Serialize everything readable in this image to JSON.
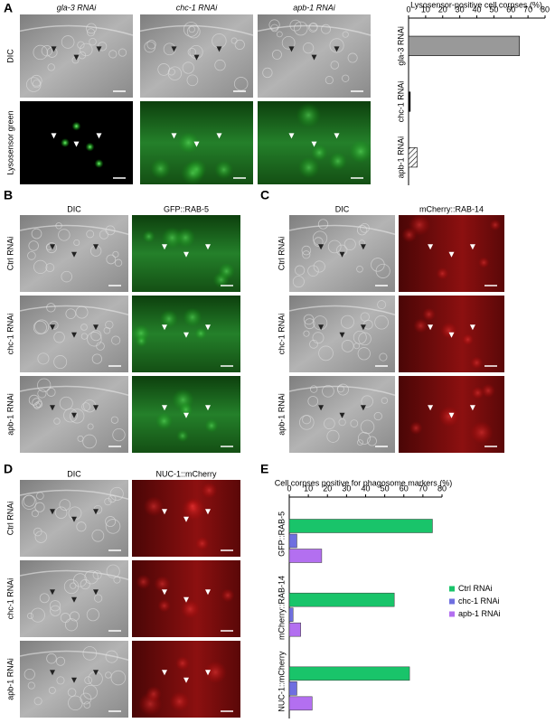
{
  "panel_letters": [
    "A",
    "B",
    "C",
    "D",
    "E"
  ],
  "panels": [
    {
      "columns": [
        "gla-3 RNAi",
        "chc-1 RNAi",
        "apb-1 RNAi"
      ],
      "rows": [
        "DIC",
        "Lysosensor green"
      ]
    },
    {
      "columns": [
        "DIC",
        "GFP::RAB-5"
      ],
      "rows": [
        "Ctrl RNAi",
        "chc-1 RNAi",
        "apb-1 RNAi"
      ]
    },
    {
      "columns": [
        "DIC",
        "mCherry::RAB-14"
      ],
      "rows": [
        "Ctrl RNAi",
        "chc-1 RNAi",
        "apb-1 RNAi"
      ]
    },
    {
      "columns": [
        "DIC",
        "NUC-1::mCherry"
      ],
      "rows": [
        "Ctrl RNAi",
        "chc-1 RNAi",
        "apb-1 RNAi"
      ]
    }
  ],
  "chart_data": [
    {
      "type": "bar",
      "orientation": "horizontal",
      "title": "Lysosensor-positive cell corpses (%)",
      "categories": [
        "gla-3 RNAi",
        "chc-1 RNAi",
        "apb-1 RNAi"
      ],
      "values": [
        65,
        1,
        5
      ],
      "colors": [
        "#999999",
        "#000000",
        "#ffffff"
      ],
      "hatch": [
        false,
        false,
        true
      ],
      "xlim": [
        0,
        80
      ],
      "xticks": [
        0,
        10,
        20,
        30,
        40,
        50,
        60,
        70,
        80
      ]
    },
    {
      "type": "bar",
      "orientation": "horizontal",
      "title": "Cell corpses positive for phagosome markers (%)",
      "categories": [
        "GFP::RAB-5",
        "mCherry::RAB-14",
        "NUC-1::mCherry"
      ],
      "series": [
        {
          "name": "Ctrl RNAi",
          "color": "#19c46a",
          "values": [
            75,
            55,
            63
          ]
        },
        {
          "name": "chc-1 RNAi",
          "color": "#6f6fe0",
          "values": [
            4,
            2,
            4
          ]
        },
        {
          "name": "apb-1 RNAi",
          "color": "#b36ff0",
          "values": [
            17,
            6,
            12
          ]
        }
      ],
      "xlim": [
        0,
        80
      ],
      "xticks": [
        0,
        10,
        20,
        30,
        40,
        50,
        60,
        70,
        80
      ],
      "legend": "right"
    }
  ]
}
